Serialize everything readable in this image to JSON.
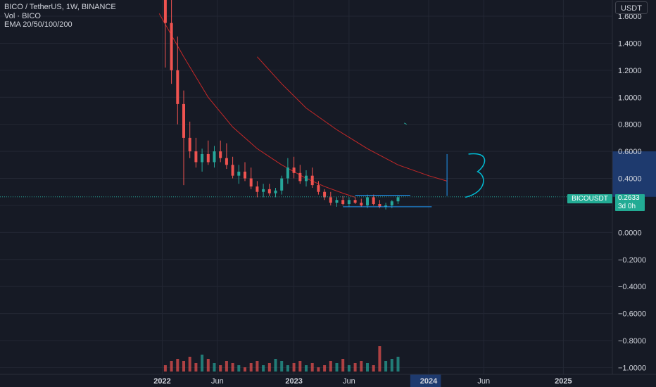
{
  "legend": {
    "line1": "BICO / TetherUS, 1W, BINANCE",
    "line2": "Vol · BICO",
    "line3": "EMA 20/50/100/200"
  },
  "currency_button": "USDT",
  "last_price": {
    "symbol": "BICOUSDT",
    "price": "0.2633",
    "countdown": "3d 0h"
  },
  "colors": {
    "background": "#161a25",
    "grid": "#232734",
    "up": "#26a69a",
    "down": "#ef5350",
    "ema": "#c62828",
    "drawing": "#2196f3",
    "highlight": "#1e3a6e"
  },
  "chart_data": {
    "type": "candlestick",
    "title": "BICO / TetherUS, 1W, BINANCE",
    "x_ticks": [
      "2022",
      "Jun",
      "2023",
      "Jun",
      "2024",
      "Jun",
      "2025"
    ],
    "y_ticks": [
      "1.6000",
      "1.4000",
      "1.2000",
      "1.0000",
      "0.8000",
      "0.6000",
      "0.4000",
      "0.2000",
      "0.0000",
      "−0.2000",
      "−0.4000",
      "−0.6000",
      "−0.8000",
      "−1.0000"
    ],
    "ylim": [
      -1.05,
      1.72
    ],
    "y_highlight_range": [
      0.2633,
      0.6
    ],
    "x_highlight_label": "2024",
    "last_price": 0.2633,
    "ema_long": [
      [
        0.26,
        1.62
      ],
      [
        0.3,
        1.3
      ],
      [
        0.34,
        1.0
      ],
      [
        0.38,
        0.78
      ],
      [
        0.42,
        0.62
      ],
      [
        0.46,
        0.5
      ],
      [
        0.5,
        0.4
      ],
      [
        0.53,
        0.34
      ],
      [
        0.56,
        0.29
      ],
      [
        0.58,
        0.26
      ]
    ],
    "ema_200_partial": [
      [
        0.42,
        1.3
      ],
      [
        0.46,
        1.1
      ],
      [
        0.5,
        0.92
      ],
      [
        0.55,
        0.76
      ],
      [
        0.6,
        0.62
      ],
      [
        0.65,
        0.5
      ],
      [
        0.7,
        0.42
      ],
      [
        0.73,
        0.38
      ]
    ],
    "candles_approx": [
      {
        "t": 0.27,
        "o": 1.9,
        "h": 2.0,
        "l": 1.22,
        "c": 1.55
      },
      {
        "t": 0.28,
        "o": 1.55,
        "h": 1.8,
        "l": 1.1,
        "c": 1.2
      },
      {
        "t": 0.29,
        "o": 1.2,
        "h": 1.45,
        "l": 0.8,
        "c": 0.95
      },
      {
        "t": 0.3,
        "o": 0.95,
        "h": 1.05,
        "l": 0.35,
        "c": 0.7
      },
      {
        "t": 0.31,
        "o": 0.7,
        "h": 0.82,
        "l": 0.55,
        "c": 0.6
      },
      {
        "t": 0.32,
        "o": 0.6,
        "h": 0.7,
        "l": 0.48,
        "c": 0.52
      },
      {
        "t": 0.33,
        "o": 0.52,
        "h": 0.62,
        "l": 0.45,
        "c": 0.58
      },
      {
        "t": 0.34,
        "o": 0.58,
        "h": 0.68,
        "l": 0.5,
        "c": 0.52
      },
      {
        "t": 0.35,
        "o": 0.52,
        "h": 0.64,
        "l": 0.48,
        "c": 0.6
      },
      {
        "t": 0.36,
        "o": 0.6,
        "h": 0.68,
        "l": 0.52,
        "c": 0.55
      },
      {
        "t": 0.37,
        "o": 0.55,
        "h": 0.66,
        "l": 0.47,
        "c": 0.5
      },
      {
        "t": 0.38,
        "o": 0.5,
        "h": 0.56,
        "l": 0.4,
        "c": 0.42
      },
      {
        "t": 0.39,
        "o": 0.42,
        "h": 0.5,
        "l": 0.36,
        "c": 0.45
      },
      {
        "t": 0.4,
        "o": 0.45,
        "h": 0.52,
        "l": 0.38,
        "c": 0.4
      },
      {
        "t": 0.41,
        "o": 0.4,
        "h": 0.48,
        "l": 0.32,
        "c": 0.34
      },
      {
        "t": 0.42,
        "o": 0.34,
        "h": 0.38,
        "l": 0.26,
        "c": 0.3
      },
      {
        "t": 0.43,
        "o": 0.3,
        "h": 0.36,
        "l": 0.26,
        "c": 0.32
      },
      {
        "t": 0.44,
        "o": 0.32,
        "h": 0.36,
        "l": 0.27,
        "c": 0.29
      },
      {
        "t": 0.45,
        "o": 0.29,
        "h": 0.33,
        "l": 0.26,
        "c": 0.31
      },
      {
        "t": 0.46,
        "o": 0.31,
        "h": 0.42,
        "l": 0.28,
        "c": 0.4
      },
      {
        "t": 0.47,
        "o": 0.4,
        "h": 0.55,
        "l": 0.36,
        "c": 0.48
      },
      {
        "t": 0.48,
        "o": 0.48,
        "h": 0.56,
        "l": 0.4,
        "c": 0.44
      },
      {
        "t": 0.49,
        "o": 0.44,
        "h": 0.5,
        "l": 0.36,
        "c": 0.38
      },
      {
        "t": 0.5,
        "o": 0.38,
        "h": 0.46,
        "l": 0.34,
        "c": 0.42
      },
      {
        "t": 0.51,
        "o": 0.42,
        "h": 0.48,
        "l": 0.33,
        "c": 0.35
      },
      {
        "t": 0.52,
        "o": 0.35,
        "h": 0.38,
        "l": 0.28,
        "c": 0.3
      },
      {
        "t": 0.53,
        "o": 0.3,
        "h": 0.32,
        "l": 0.24,
        "c": 0.26
      },
      {
        "t": 0.54,
        "o": 0.26,
        "h": 0.3,
        "l": 0.2,
        "c": 0.22
      },
      {
        "t": 0.55,
        "o": 0.22,
        "h": 0.26,
        "l": 0.19,
        "c": 0.24
      },
      {
        "t": 0.56,
        "o": 0.24,
        "h": 0.27,
        "l": 0.2,
        "c": 0.21
      },
      {
        "t": 0.57,
        "o": 0.21,
        "h": 0.26,
        "l": 0.19,
        "c": 0.24
      },
      {
        "t": 0.58,
        "o": 0.24,
        "h": 0.26,
        "l": 0.21,
        "c": 0.22
      },
      {
        "t": 0.59,
        "o": 0.22,
        "h": 0.25,
        "l": 0.19,
        "c": 0.2
      },
      {
        "t": 0.6,
        "o": 0.2,
        "h": 0.28,
        "l": 0.18,
        "c": 0.26
      },
      {
        "t": 0.61,
        "o": 0.26,
        "h": 0.28,
        "l": 0.2,
        "c": 0.21
      },
      {
        "t": 0.62,
        "o": 0.21,
        "h": 0.24,
        "l": 0.18,
        "c": 0.19
      },
      {
        "t": 0.63,
        "o": 0.19,
        "h": 0.22,
        "l": 0.17,
        "c": 0.2
      },
      {
        "t": 0.64,
        "o": 0.2,
        "h": 0.24,
        "l": 0.18,
        "c": 0.23
      },
      {
        "t": 0.65,
        "o": 0.23,
        "h": 0.27,
        "l": 0.21,
        "c": 0.26
      }
    ],
    "volume_approx": [
      0.03,
      0.05,
      0.06,
      0.05,
      0.07,
      0.04,
      0.08,
      0.06,
      0.04,
      0.03,
      0.05,
      0.04,
      0.03,
      0.02,
      0.04,
      0.05,
      0.03,
      0.04,
      0.06,
      0.05,
      0.03,
      0.04,
      0.05,
      0.03,
      0.04,
      0.02,
      0.03,
      0.05,
      0.04,
      0.06,
      0.03,
      0.04,
      0.05,
      0.04,
      0.03,
      0.12,
      0.05,
      0.06,
      0.07
    ]
  }
}
